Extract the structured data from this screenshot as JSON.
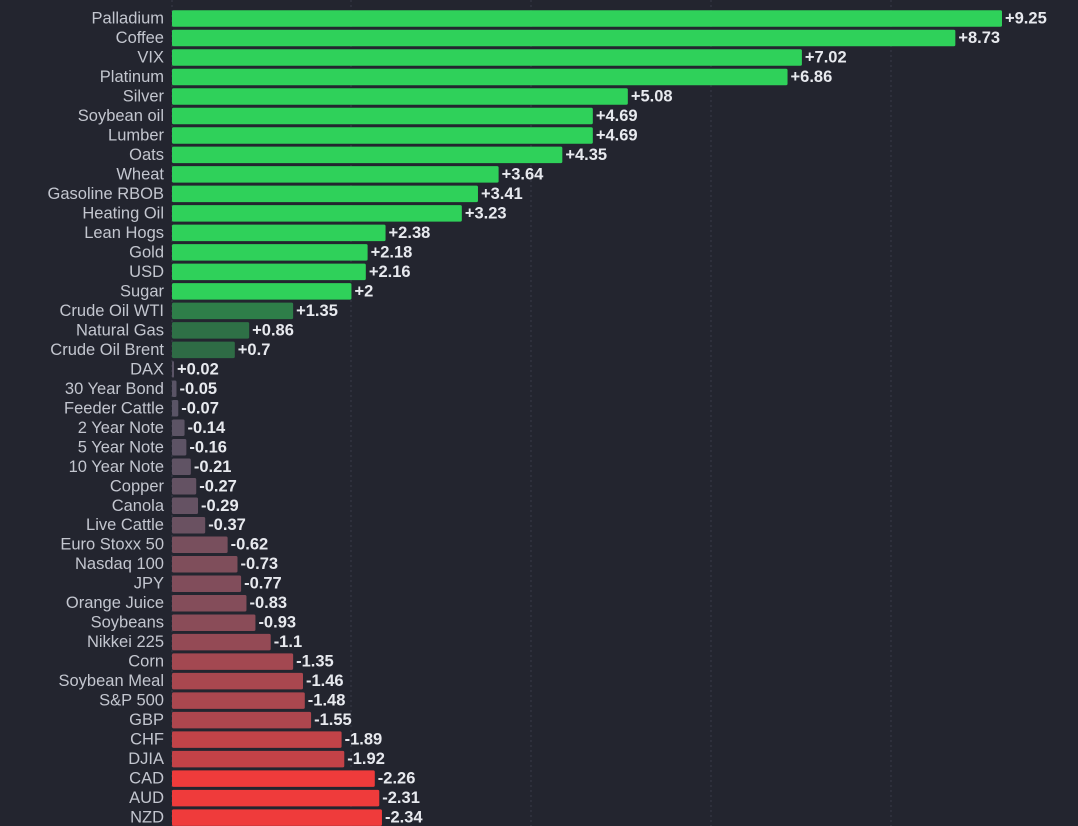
{
  "chart_data": {
    "type": "bar",
    "orientation": "horizontal",
    "categories": [
      "Palladium",
      "Coffee",
      "VIX",
      "Platinum",
      "Silver",
      "Soybean oil",
      "Lumber",
      "Oats",
      "Wheat",
      "Gasoline RBOB",
      "Heating Oil",
      "Lean Hogs",
      "Gold",
      "USD",
      "Sugar",
      "Crude Oil WTI",
      "Natural Gas",
      "Crude Oil Brent",
      "DAX",
      "30 Year Bond",
      "Feeder Cattle",
      "2 Year Note",
      "5 Year Note",
      "10 Year Note",
      "Copper",
      "Canola",
      "Live Cattle",
      "Euro Stoxx 50",
      "Nasdaq 100",
      "JPY",
      "Orange Juice",
      "Soybeans",
      "Nikkei 225",
      "Corn",
      "Soybean Meal",
      "S&P 500",
      "GBP",
      "CHF",
      "DJIA",
      "CAD",
      "AUD",
      "NZD"
    ],
    "values": [
      9.25,
      8.73,
      7.02,
      6.86,
      5.08,
      4.69,
      4.69,
      4.35,
      3.64,
      3.41,
      3.23,
      2.38,
      2.18,
      2.16,
      2,
      1.35,
      0.86,
      0.7,
      0.02,
      -0.05,
      -0.07,
      -0.14,
      -0.16,
      -0.21,
      -0.27,
      -0.29,
      -0.37,
      -0.62,
      -0.73,
      -0.77,
      -0.83,
      -0.93,
      -1.1,
      -1.35,
      -1.46,
      -1.48,
      -1.55,
      -1.89,
      -1.92,
      -2.26,
      -2.31,
      -2.34
    ],
    "labels": [
      "+9.25",
      "+8.73",
      "+7.02",
      "+6.86",
      "+5.08",
      "+4.69",
      "+4.69",
      "+4.35",
      "+3.64",
      "+3.41",
      "+3.23",
      "+2.38",
      "+2.18",
      "+2.16",
      "+2",
      "+1.35",
      "+0.86",
      "+0.7",
      "+0.02",
      "-0.05",
      "-0.07",
      "-0.14",
      "-0.16",
      "-0.21",
      "-0.27",
      "-0.29",
      "-0.37",
      "-0.62",
      "-0.73",
      "-0.77",
      "-0.83",
      "-0.93",
      "-1.1",
      "-1.35",
      "-1.46",
      "-1.48",
      "-1.55",
      "-1.89",
      "-1.92",
      "-2.26",
      "-2.31",
      "-2.34"
    ],
    "title": "",
    "xlabel": "",
    "ylabel": "",
    "xlim": [
      -2.34,
      9.25
    ],
    "grid": true,
    "legend": false,
    "colors": {
      "background": "#23252f",
      "positive_strong": "#2fd15a",
      "positive_weak": "#2e6b45",
      "neutral": "#5a5466",
      "negative_weak": "#6a4655",
      "negative_strong": "#ef3b3b",
      "grid": "#3a3c48",
      "category_text": "#c3c6cf",
      "value_text": "#e7e9ee"
    }
  }
}
